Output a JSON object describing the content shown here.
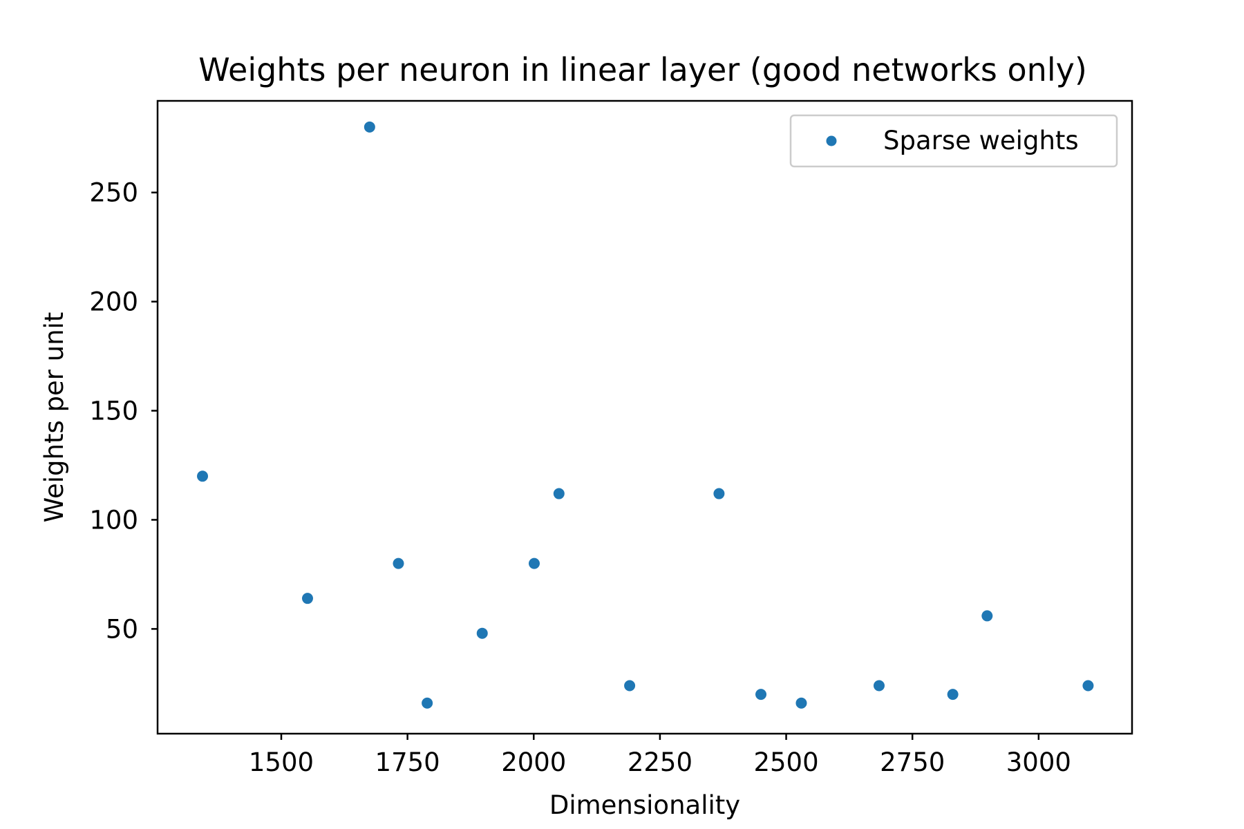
{
  "chart_data": {
    "type": "scatter",
    "title": "Weights per neuron in linear layer (good networks only)",
    "xlabel": "Dimensionality",
    "ylabel": "Weights per unit",
    "xlim": [
      1255,
      3185
    ],
    "ylim": [
      2,
      292
    ],
    "xticks": [
      1500,
      1750,
      2000,
      2250,
      2500,
      2750,
      3000
    ],
    "yticks": [
      50,
      100,
      150,
      200,
      250
    ],
    "grid": false,
    "legend_position": "top-right",
    "series": [
      {
        "name": "Sparse weights",
        "color": "#1f77b4",
        "points": [
          {
            "x": 1344,
            "y": 120
          },
          {
            "x": 1552,
            "y": 64
          },
          {
            "x": 1675,
            "y": 280
          },
          {
            "x": 1732,
            "y": 80
          },
          {
            "x": 1789,
            "y": 16
          },
          {
            "x": 1898,
            "y": 48
          },
          {
            "x": 2001,
            "y": 80
          },
          {
            "x": 2050,
            "y": 112
          },
          {
            "x": 2190,
            "y": 24
          },
          {
            "x": 2367,
            "y": 112
          },
          {
            "x": 2450,
            "y": 20
          },
          {
            "x": 2530,
            "y": 16
          },
          {
            "x": 2684,
            "y": 24
          },
          {
            "x": 2830,
            "y": 20
          },
          {
            "x": 2898,
            "y": 56
          },
          {
            "x": 3098,
            "y": 24
          }
        ]
      }
    ]
  }
}
